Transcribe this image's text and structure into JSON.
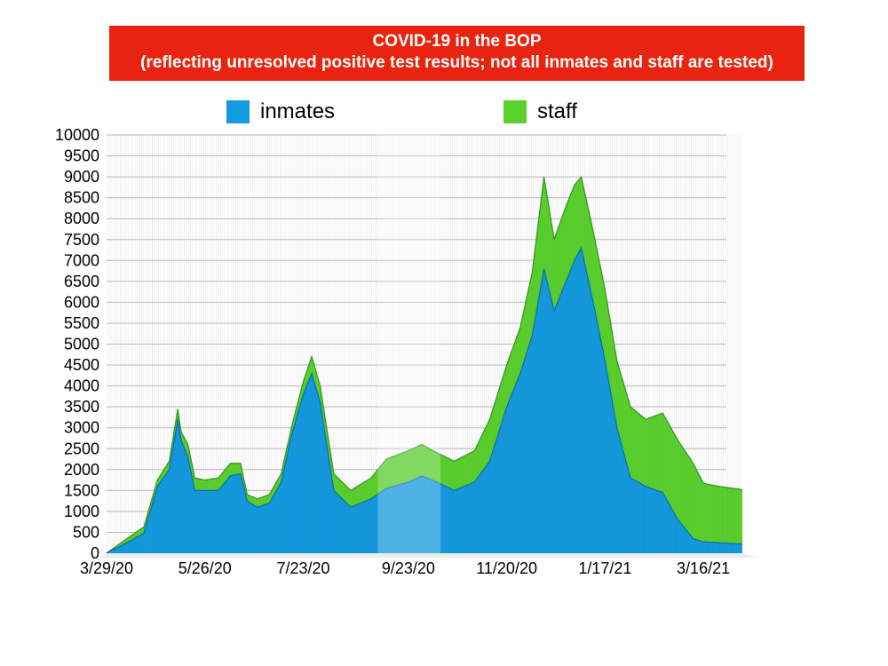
{
  "chart_data": {
    "type": "area",
    "stacked": true,
    "title": "COVID-19 in the BOP",
    "subtitle": "(reflecting unresolved positive test results; not all inmates and staff are tested)",
    "ylim": [
      0,
      10000
    ],
    "y_ticks": [
      0,
      500,
      1000,
      1500,
      2000,
      2500,
      3000,
      3500,
      4000,
      4500,
      5000,
      5500,
      6000,
      6500,
      7000,
      7500,
      8000,
      8500,
      9000,
      9500,
      10000
    ],
    "x_range": [
      "3/29/20",
      "4/8/21"
    ],
    "x_tick_labels": [
      "3/29/20",
      "5/26/20",
      "7/23/20",
      "9/23/20",
      "11/20/20",
      "1/17/21",
      "3/16/21"
    ],
    "grid": true,
    "legend_placement": "top",
    "series": [
      {
        "name": "inmates",
        "color": "#159ae0",
        "points": [
          [
            "3/29/20",
            0
          ],
          [
            "4/10/20",
            250
          ],
          [
            "4/20/20",
            480
          ],
          [
            "4/28/20",
            1600
          ],
          [
            "5/5/20",
            2000
          ],
          [
            "5/10/20",
            3200
          ],
          [
            "5/12/20",
            2700
          ],
          [
            "5/16/20",
            2300
          ],
          [
            "5/20/20",
            1500
          ],
          [
            "5/26/20",
            1500
          ],
          [
            "6/3/20",
            1500
          ],
          [
            "6/10/20",
            1850
          ],
          [
            "6/16/20",
            1900
          ],
          [
            "6/20/20",
            1250
          ],
          [
            "6/26/20",
            1100
          ],
          [
            "7/3/20",
            1200
          ],
          [
            "7/10/20",
            1700
          ],
          [
            "7/16/20",
            2800
          ],
          [
            "7/23/20",
            3800
          ],
          [
            "7/28/20",
            4300
          ],
          [
            "8/2/20",
            3600
          ],
          [
            "8/10/20",
            1500
          ],
          [
            "8/20/20",
            1100
          ],
          [
            "9/1/20",
            1300
          ],
          [
            "9/10/20",
            1550
          ],
          [
            "9/23/20",
            1700
          ],
          [
            "10/1/20",
            1850
          ],
          [
            "10/10/20",
            1700
          ],
          [
            "10/20/20",
            1500
          ],
          [
            "11/1/20",
            1700
          ],
          [
            "11/10/20",
            2200
          ],
          [
            "11/20/20",
            3500
          ],
          [
            "11/28/20",
            4300
          ],
          [
            "12/5/20",
            5200
          ],
          [
            "12/12/20",
            6800
          ],
          [
            "12/18/20",
            5800
          ],
          [
            "12/25/20",
            6500
          ],
          [
            "12/30/20",
            7000
          ],
          [
            "1/3/21",
            7300
          ],
          [
            "1/10/21",
            6000
          ],
          [
            "1/17/21",
            4600
          ],
          [
            "1/24/21",
            3000
          ],
          [
            "2/1/21",
            1800
          ],
          [
            "2/10/21",
            1600
          ],
          [
            "2/20/21",
            1450
          ],
          [
            "3/1/21",
            800
          ],
          [
            "3/10/21",
            350
          ],
          [
            "3/16/21",
            270
          ],
          [
            "3/25/21",
            250
          ],
          [
            "4/8/21",
            220
          ]
        ]
      },
      {
        "name": "staff",
        "color": "#5bd12e",
        "points": [
          [
            "3/29/20",
            0
          ],
          [
            "4/10/20",
            100
          ],
          [
            "4/20/20",
            150
          ],
          [
            "4/28/20",
            150
          ],
          [
            "5/5/20",
            200
          ],
          [
            "5/10/20",
            250
          ],
          [
            "5/12/20",
            200
          ],
          [
            "5/16/20",
            300
          ],
          [
            "5/20/20",
            300
          ],
          [
            "5/26/20",
            250
          ],
          [
            "6/3/20",
            300
          ],
          [
            "6/10/20",
            300
          ],
          [
            "6/16/20",
            250
          ],
          [
            "6/20/20",
            150
          ],
          [
            "6/26/20",
            200
          ],
          [
            "7/3/20",
            200
          ],
          [
            "7/10/20",
            200
          ],
          [
            "7/16/20",
            200
          ],
          [
            "7/23/20",
            300
          ],
          [
            "7/28/20",
            400
          ],
          [
            "8/2/20",
            400
          ],
          [
            "8/10/20",
            400
          ],
          [
            "8/20/20",
            400
          ],
          [
            "9/1/20",
            500
          ],
          [
            "9/10/20",
            700
          ],
          [
            "9/23/20",
            750
          ],
          [
            "10/1/20",
            750
          ],
          [
            "10/10/20",
            700
          ],
          [
            "10/20/20",
            700
          ],
          [
            "11/1/20",
            750
          ],
          [
            "11/10/20",
            1000
          ],
          [
            "11/20/20",
            1000
          ],
          [
            "11/28/20",
            1100
          ],
          [
            "12/5/20",
            1500
          ],
          [
            "12/12/20",
            2200
          ],
          [
            "12/18/20",
            1700
          ],
          [
            "12/25/20",
            1800
          ],
          [
            "12/30/20",
            1800
          ],
          [
            "1/3/21",
            1700
          ],
          [
            "1/10/21",
            1700
          ],
          [
            "1/17/21",
            1700
          ],
          [
            "1/24/21",
            1600
          ],
          [
            "2/1/21",
            1700
          ],
          [
            "2/10/21",
            1600
          ],
          [
            "2/20/21",
            1900
          ],
          [
            "3/1/21",
            1900
          ],
          [
            "3/10/21",
            1800
          ],
          [
            "3/16/21",
            1400
          ],
          [
            "3/25/21",
            1350
          ],
          [
            "4/8/21",
            1300
          ]
        ]
      }
    ]
  }
}
